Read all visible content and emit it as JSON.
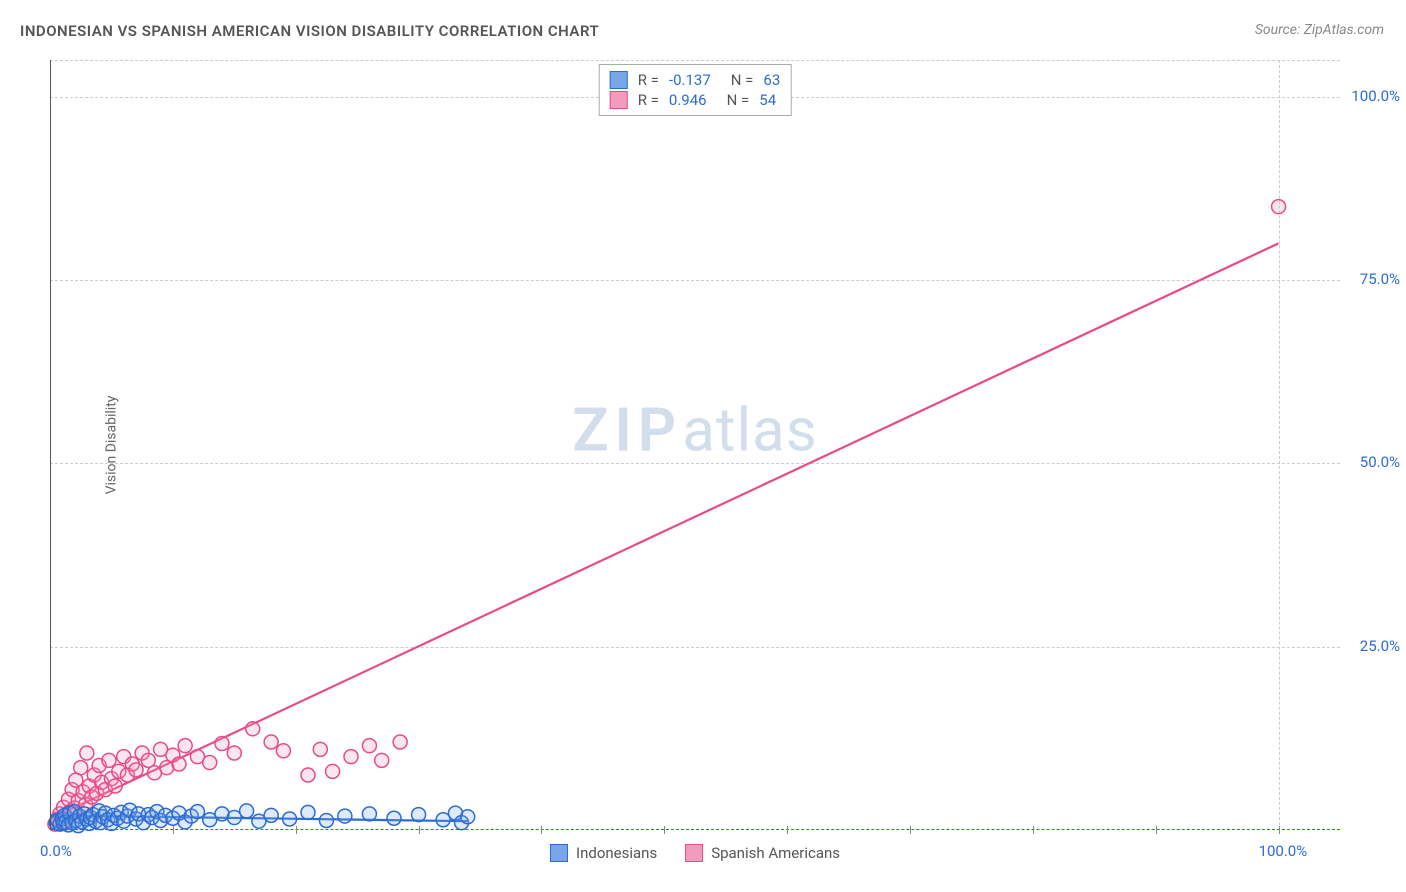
{
  "title": "INDONESIAN VS SPANISH AMERICAN VISION DISABILITY CORRELATION CHART",
  "source_prefix": "Source: ",
  "source_name": "ZipAtlas.com",
  "watermark_zip": "ZIP",
  "watermark_atlas": "atlas",
  "chart": {
    "type": "scatter",
    "ylabel": "Vision Disability",
    "xlim": [
      0,
      105
    ],
    "ylim": [
      0,
      105
    ],
    "yticks": [
      {
        "v": 25,
        "label": "25.0%"
      },
      {
        "v": 50,
        "label": "50.0%"
      },
      {
        "v": 75,
        "label": "75.0%"
      },
      {
        "v": 100,
        "label": "100.0%"
      }
    ],
    "xtick_origin": {
      "v": 0,
      "label": "0.0%"
    },
    "xtick_end": {
      "v": 100,
      "label": "100.0%"
    },
    "xtick_marks": [
      10,
      20,
      30,
      40,
      50,
      60,
      70,
      80,
      90,
      100
    ],
    "background_color": "#ffffff",
    "grid_color": "#cccccc",
    "grid_dash": "4,4",
    "axis_color": "#555555",
    "xaxis_color": "#2b6bd4",
    "tick_label_color": "#2b6bd4",
    "tick_fontsize": 15,
    "ylabel_fontsize": 14,
    "ylabel_color": "#666666",
    "marker_radius": 7,
    "marker_stroke_width": 1.5,
    "marker_fill_opacity": 0.25,
    "line_width": 2.2
  },
  "series": [
    {
      "name": "Indonesians",
      "color_stroke": "#2b6bd4",
      "color_fill": "#7aa6e6",
      "R": "-0.137",
      "N": "63",
      "regression": {
        "x1": 0,
        "y1": 2.0,
        "x2": 34,
        "y2": 1.2
      },
      "points": [
        [
          0.5,
          1.0
        ],
        [
          0.6,
          1.3
        ],
        [
          0.8,
          0.8
        ],
        [
          1.0,
          1.5
        ],
        [
          1.1,
          0.9
        ],
        [
          1.2,
          2.0
        ],
        [
          1.3,
          1.1
        ],
        [
          1.5,
          0.7
        ],
        [
          1.6,
          2.3
        ],
        [
          1.8,
          1.0
        ],
        [
          2.0,
          2.5
        ],
        [
          2.1,
          1.3
        ],
        [
          2.3,
          0.6
        ],
        [
          2.4,
          1.9
        ],
        [
          2.6,
          1.1
        ],
        [
          2.8,
          2.2
        ],
        [
          3.0,
          1.5
        ],
        [
          3.2,
          0.9
        ],
        [
          3.3,
          1.7
        ],
        [
          3.5,
          2.1
        ],
        [
          3.7,
          1.2
        ],
        [
          4.0,
          2.6
        ],
        [
          4.1,
          1.0
        ],
        [
          4.3,
          1.8
        ],
        [
          4.5,
          2.3
        ],
        [
          4.7,
          1.4
        ],
        [
          5.0,
          0.9
        ],
        [
          5.2,
          2.0
        ],
        [
          5.5,
          1.6
        ],
        [
          5.8,
          2.4
        ],
        [
          6.0,
          1.2
        ],
        [
          6.3,
          1.9
        ],
        [
          6.5,
          2.7
        ],
        [
          7.0,
          1.5
        ],
        [
          7.2,
          2.2
        ],
        [
          7.6,
          1.0
        ],
        [
          8.0,
          2.1
        ],
        [
          8.3,
          1.7
        ],
        [
          8.7,
          2.5
        ],
        [
          9.0,
          1.3
        ],
        [
          9.4,
          2.0
        ],
        [
          10.0,
          1.6
        ],
        [
          10.5,
          2.3
        ],
        [
          11.0,
          1.1
        ],
        [
          11.5,
          1.9
        ],
        [
          12.0,
          2.5
        ],
        [
          13.0,
          1.4
        ],
        [
          14.0,
          2.2
        ],
        [
          15.0,
          1.7
        ],
        [
          16.0,
          2.6
        ],
        [
          17.0,
          1.2
        ],
        [
          18.0,
          2.0
        ],
        [
          19.5,
          1.5
        ],
        [
          21.0,
          2.4
        ],
        [
          22.5,
          1.3
        ],
        [
          24.0,
          1.9
        ],
        [
          26.0,
          2.2
        ],
        [
          28.0,
          1.6
        ],
        [
          30.0,
          2.1
        ],
        [
          32.0,
          1.4
        ],
        [
          33.0,
          2.3
        ],
        [
          33.5,
          1.0
        ],
        [
          34.0,
          1.8
        ]
      ]
    },
    {
      "name": "Spanish Americans",
      "color_stroke": "#e84b8a",
      "color_fill": "#f29cbc",
      "R": "0.946",
      "N": "54",
      "regression": {
        "x1": 0,
        "y1": 1.5,
        "x2": 100,
        "y2": 80
      },
      "points": [
        [
          0.4,
          0.8
        ],
        [
          0.6,
          1.5
        ],
        [
          0.8,
          2.2
        ],
        [
          1.0,
          1.0
        ],
        [
          1.1,
          3.1
        ],
        [
          1.3,
          1.8
        ],
        [
          1.5,
          4.2
        ],
        [
          1.6,
          2.5
        ],
        [
          1.8,
          5.5
        ],
        [
          2.0,
          3.0
        ],
        [
          2.1,
          6.8
        ],
        [
          2.3,
          4.0
        ],
        [
          2.5,
          8.5
        ],
        [
          2.7,
          5.2
        ],
        [
          2.9,
          3.5
        ],
        [
          3.0,
          10.5
        ],
        [
          3.2,
          6.0
        ],
        [
          3.4,
          4.5
        ],
        [
          3.6,
          7.5
        ],
        [
          3.8,
          5.0
        ],
        [
          4.0,
          8.8
        ],
        [
          4.2,
          6.5
        ],
        [
          4.5,
          5.5
        ],
        [
          4.8,
          9.5
        ],
        [
          5.0,
          7.0
        ],
        [
          5.3,
          6.0
        ],
        [
          5.6,
          8.0
        ],
        [
          6.0,
          10.0
        ],
        [
          6.3,
          7.5
        ],
        [
          6.7,
          9.0
        ],
        [
          7.0,
          8.2
        ],
        [
          7.5,
          10.5
        ],
        [
          8.0,
          9.5
        ],
        [
          8.5,
          7.8
        ],
        [
          9.0,
          11.0
        ],
        [
          9.5,
          8.5
        ],
        [
          10.0,
          10.2
        ],
        [
          10.5,
          9.0
        ],
        [
          11.0,
          11.5
        ],
        [
          12.0,
          10.0
        ],
        [
          13.0,
          9.2
        ],
        [
          14.0,
          11.8
        ],
        [
          15.0,
          10.5
        ],
        [
          16.5,
          13.8
        ],
        [
          18.0,
          12.0
        ],
        [
          19.0,
          10.8
        ],
        [
          22.0,
          11.0
        ],
        [
          24.5,
          10.0
        ],
        [
          26.0,
          11.5
        ],
        [
          21.0,
          7.5
        ],
        [
          23.0,
          8.0
        ],
        [
          27.0,
          9.5
        ],
        [
          28.5,
          12.0
        ],
        [
          100.0,
          85.0
        ]
      ]
    }
  ],
  "legend_top": {
    "R_label": "R =",
    "N_label": "N ="
  },
  "legend_bottom": [
    {
      "label": "Indonesians"
    },
    {
      "label": "Spanish Americans"
    }
  ]
}
